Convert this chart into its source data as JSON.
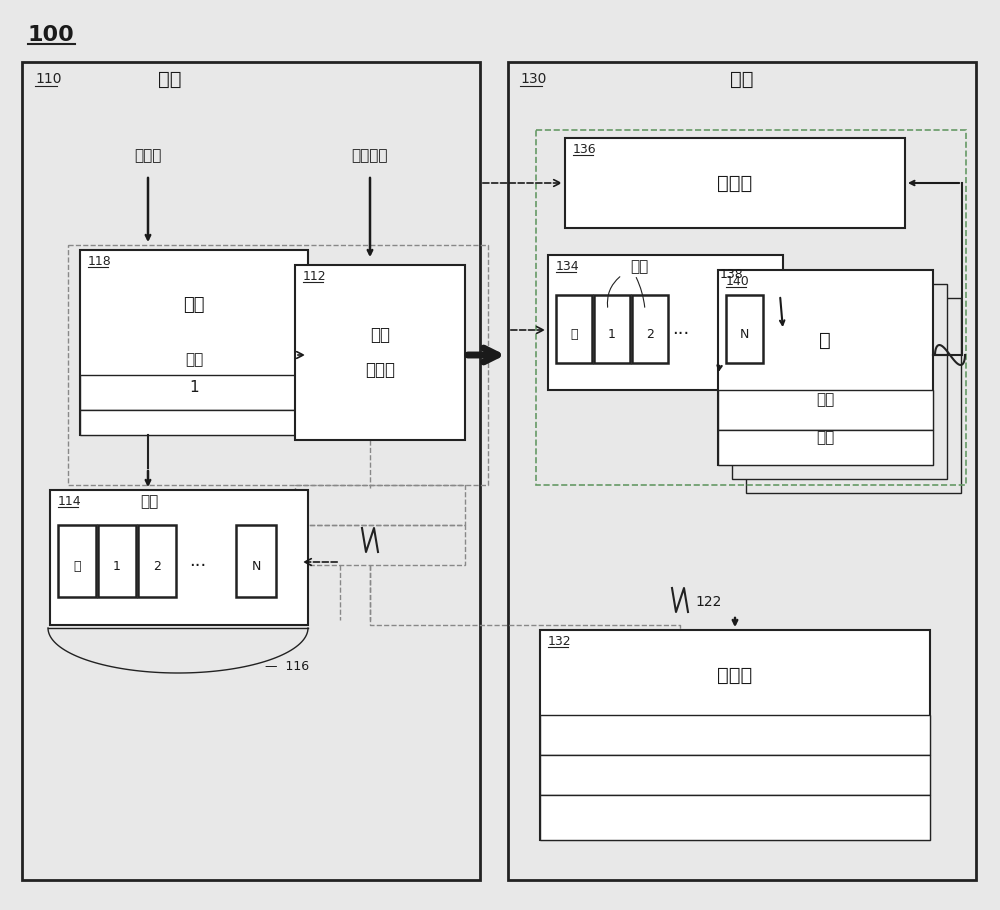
{
  "bg_color": "#e8e8e8",
  "white": "#ffffff",
  "black": "#1a1a1a",
  "dark": "#222222",
  "fig_w": 10.0,
  "fig_h": 9.1,
  "dpi": 100,
  "fig_label": "100",
  "left_box_label": "110",
  "left_box_title": "应用",
  "right_box_label": "130",
  "right_box_title": "区域",
  "proxy_label": "118",
  "proxy_title": "代理",
  "proxy_sub1": "指针",
  "proxy_sub2": "1",
  "creator_label": "112",
  "creator_line1": "区域",
  "creator_line2": "创建器",
  "channel114_label": "114",
  "channel114_title": "信道",
  "channel114_cells": [
    "空",
    "1",
    "2",
    "N"
  ],
  "channel116_label": "116",
  "root_obj_label": "136",
  "root_obj_title": "根对象",
  "channel134_label": "134",
  "channel134_title": "信道",
  "channel134_cells": [
    "空",
    "1",
    "2",
    "N"
  ],
  "bridge_label": "140",
  "bridge_title": "桥",
  "bridge_sub1": "指针",
  "bridge_sub2": "指针",
  "startup_label": "132",
  "startup_title": "启动类",
  "label138": "138",
  "label122": "122",
  "text_root_interface": "根接口",
  "text_create_zone": "创建区域"
}
